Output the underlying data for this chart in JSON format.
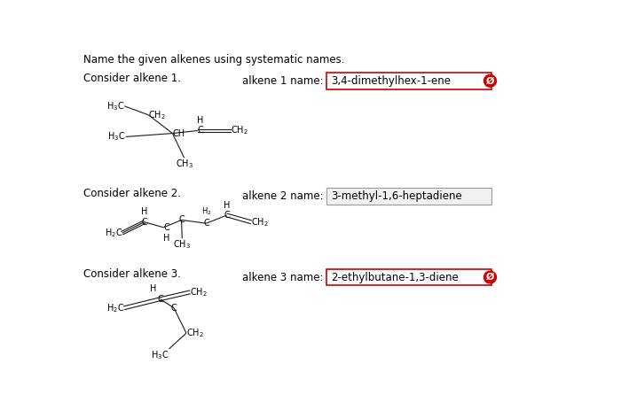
{
  "title": "Name the given alkenes using systematic names.",
  "bg_color": "#ffffff",
  "alkene1_label": "Consider alkene 1.",
  "alkene2_label": "Consider alkene 2.",
  "alkene3_label": "Consider alkene 3.",
  "answer1_label": "alkene 1 name:",
  "answer2_label": "alkene 2 name:",
  "answer3_label": "alkene 3 name:",
  "answer1": "3,4-dimethylhex-1-ene",
  "answer2": "3-methyl-1,6-heptadiene",
  "answer3": "2-ethylbutane-1,3-diene",
  "answer1_red_border": true,
  "answer2_red_border": false,
  "answer3_red_border": true,
  "font_size_title": 8.5,
  "font_size_consider": 8.5,
  "font_size_answer_label": 8.5,
  "font_size_answer": 8.5,
  "font_size_struct": 7.0
}
